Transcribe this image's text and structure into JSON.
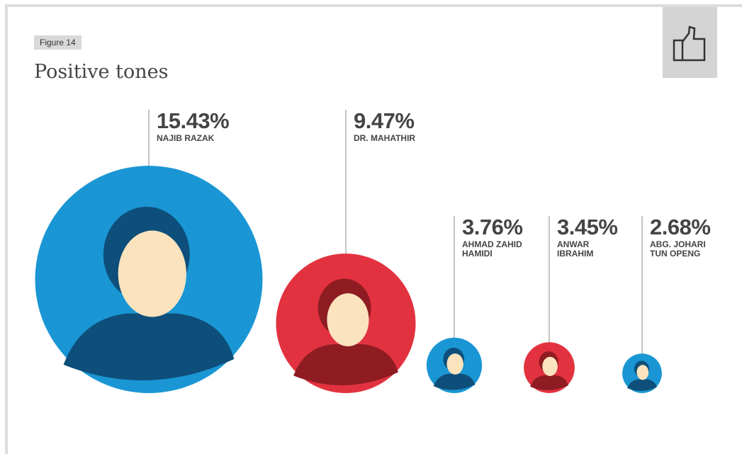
{
  "chart_data": {
    "type": "bubble",
    "figure_label": "Figure 14",
    "title": "Positive tones",
    "categories": [
      "NAJIB RAZAK",
      "DR. MAHATHIR",
      "AHMAD ZAHID\nHAMIDI",
      "ANWAR\nIBRAHIM",
      "ABG. JOHARI\nTUN OPENG"
    ],
    "values": [
      15.43,
      9.47,
      3.76,
      3.45,
      2.68
    ],
    "value_labels": [
      "15.43%",
      "9.47%",
      "3.76%",
      "3.45%",
      "2.68%"
    ],
    "colors": [
      "#1a96d4",
      "#e2323f",
      "#1a96d4",
      "#e2323f",
      "#1a96d4"
    ]
  }
}
